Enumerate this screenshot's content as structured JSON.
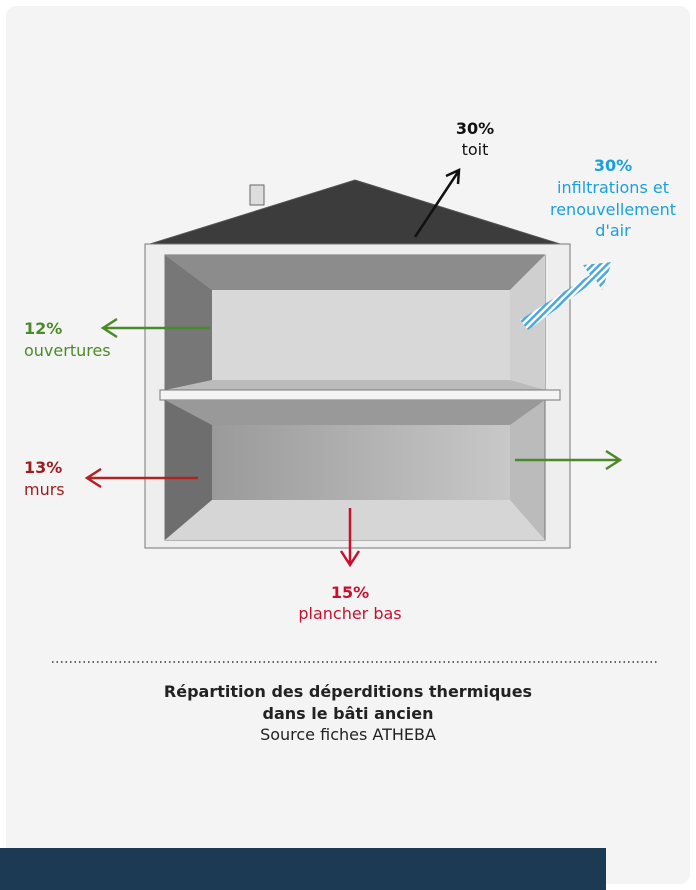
{
  "losses": [
    {
      "value": "30%",
      "lines": [
        "toit"
      ]
    },
    {
      "value": "30%",
      "lines": [
        "infiltrations et",
        "renouvellement",
        "d'air"
      ]
    },
    {
      "value": "12%",
      "lines": [
        "ouvertures"
      ]
    },
    {
      "value": "13%",
      "lines": [
        "murs"
      ]
    },
    {
      "value": "15%",
      "lines": [
        "plancher bas"
      ]
    }
  ],
  "caption": {
    "title_lines": [
      "Répartition des déperditions thermiques",
      "dans le bâti ancien"
    ],
    "source": "Source fiches ATHEBA"
  }
}
